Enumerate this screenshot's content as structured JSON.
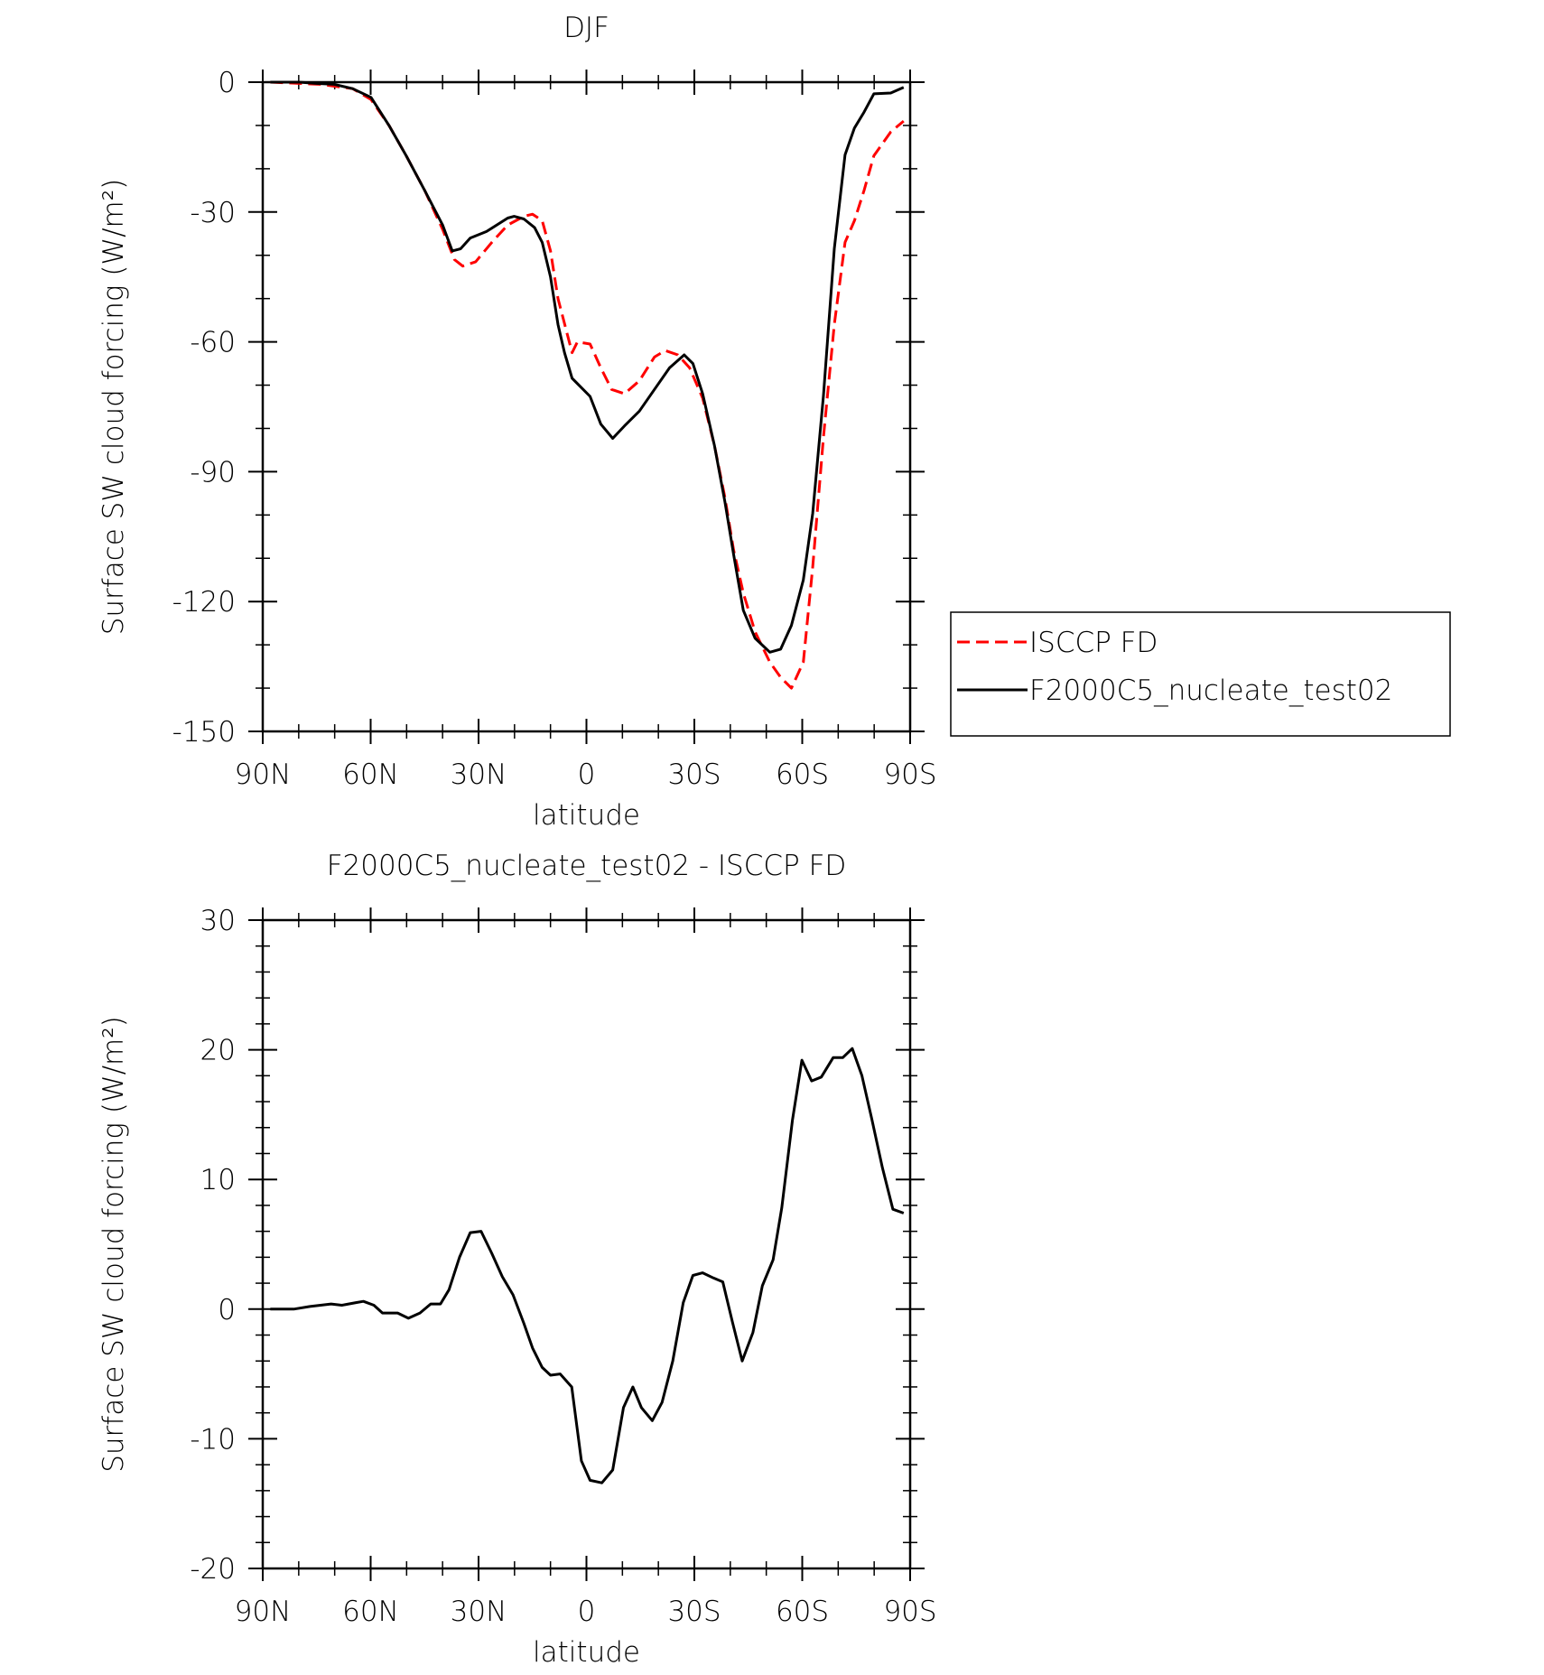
{
  "chart_data": [
    {
      "type": "line",
      "title": "DJF",
      "xlabel": "latitude",
      "ylabel": "Surface SW cloud forcing (W/m²)",
      "xlim": [
        90,
        -90
      ],
      "xticks": [
        {
          "value": 90,
          "label": "90N"
        },
        {
          "value": 60,
          "label": "60N"
        },
        {
          "value": 30,
          "label": "30N"
        },
        0,
        {
          "value": -30,
          "label": "30S"
        },
        {
          "value": -60,
          "label": "60S"
        },
        {
          "value": -90,
          "label": "90S"
        }
      ],
      "xminorticks": [
        80,
        70,
        50,
        40,
        20,
        10,
        -10,
        -20,
        -40,
        -50,
        -70,
        -80
      ],
      "ylim": [
        -150,
        0
      ],
      "yticks": [
        -150,
        -120,
        -90,
        -60,
        -30,
        0
      ],
      "yminorticks": [
        -140,
        -130,
        -110,
        -100,
        -80,
        -70,
        -50,
        -40,
        -20,
        -10
      ],
      "legend": "right",
      "series": [
        {
          "name": "ISCCP FD",
          "color": "#ff0000",
          "dash": true,
          "x": [
            87.9,
            74,
            65.0,
            59.9,
            54.9,
            50.1,
            45.0,
            40.0,
            36.7,
            34.4,
            30.8,
            26.3,
            21.9,
            17.4,
            15.0,
            12.3,
            10.0,
            7.9,
            4.0,
            2.5,
            -1.0,
            -4.0,
            -7.0,
            -10.6,
            -14.7,
            -18.9,
            -21.9,
            -25.4,
            -28.7,
            -32.3,
            -35.6,
            -38.5,
            -40.9,
            -43.6,
            -46.9,
            -51.0,
            -54.0,
            -57.0,
            -60.3,
            -62.9,
            -65.9,
            -68.9,
            -71.9,
            -74.5,
            -77.2,
            -79.9,
            -84.6,
            -88.2
          ],
          "values": [
            0,
            -0.5,
            -1.5,
            -4,
            -10,
            -17,
            -25,
            -34,
            -41,
            -42.5,
            -41.5,
            -37,
            -33,
            -31,
            -30.5,
            -32,
            -39,
            -50,
            -62.5,
            -60,
            -60.5,
            -66,
            -71,
            -72,
            -69,
            -63.5,
            -62,
            -63,
            -66,
            -73,
            -84,
            -96,
            -108,
            -118,
            -127,
            -134,
            -137.5,
            -140,
            -134,
            -112,
            -82,
            -56,
            -37,
            -32,
            -25,
            -17,
            -11.5,
            -9
          ]
        },
        {
          "name": "F2000C5_nucleate_test02",
          "color": "#000000",
          "dash": false,
          "x": [
            87.9,
            79.9,
            75.1,
            70.1,
            65.0,
            59.9,
            54.9,
            50.1,
            45.0,
            40.0,
            37.3,
            35.0,
            32.3,
            27.8,
            21.9,
            20.1,
            17.4,
            14.4,
            12.3,
            10.0,
            7.9,
            6.1,
            4.0,
            -1.0,
            -4.0,
            -7.3,
            -10.6,
            -14.7,
            -18.9,
            -23.1,
            -27.2,
            -29.6,
            -32.3,
            -35.6,
            -38.5,
            -40.9,
            -43.6,
            -46.9,
            -51.0,
            -54.0,
            -57.0,
            -60.3,
            -62.9,
            -65.9,
            -68.9,
            -71.9,
            -74.5,
            -77.2,
            -79.9,
            -84.6,
            -88.2
          ],
          "values": [
            0,
            0,
            -0.3,
            -0.5,
            -1.5,
            -3.5,
            -10,
            -17,
            -25,
            -33,
            -39,
            -38.5,
            -36,
            -34.5,
            -31.4,
            -31,
            -31.6,
            -33.6,
            -37,
            -45,
            -56,
            -62.5,
            -68.4,
            -72.6,
            -79,
            -82.3,
            -79.4,
            -76,
            -71,
            -66,
            -63,
            -65,
            -72,
            -84,
            -97,
            -109,
            -122,
            -128.5,
            -131.7,
            -131,
            -125.5,
            -115,
            -99.6,
            -72.4,
            -38.5,
            -16.8,
            -10.6,
            -6.9,
            -2.7,
            -2.5,
            -1.2
          ]
        }
      ]
    },
    {
      "type": "line",
      "title": "F2000C5_nucleate_test02 - ISCCP FD",
      "xlabel": "latitude",
      "ylabel": "Surface SW cloud forcing (W/m²)",
      "xlim": [
        90,
        -90
      ],
      "xticks": [
        {
          "value": 90,
          "label": "90N"
        },
        {
          "value": 60,
          "label": "60N"
        },
        {
          "value": 30,
          "label": "30N"
        },
        0,
        {
          "value": -30,
          "label": "30S"
        },
        {
          "value": -60,
          "label": "60S"
        },
        {
          "value": -90,
          "label": "90S"
        }
      ],
      "xminorticks": [
        80,
        70,
        50,
        40,
        20,
        10,
        -10,
        -20,
        -40,
        -50,
        -70,
        -80
      ],
      "ylim": [
        -20,
        30
      ],
      "yticks": [
        -20,
        -10,
        0,
        10,
        20,
        30
      ],
      "yminorticks": [
        -18,
        -16,
        -14,
        -12,
        -8,
        -6,
        -4,
        -2,
        2,
        4,
        6,
        8,
        12,
        14,
        16,
        18,
        22,
        24,
        26,
        28
      ],
      "series": [
        {
          "color": "#000000",
          "dash": false,
          "x": [
            87.9,
            81.4,
            76.9,
            71.0,
            68.0,
            64.1,
            62.0,
            59.1,
            56.7,
            52.5,
            49.5,
            46.3,
            43.3,
            40.6,
            38.2,
            35.3,
            32.3,
            29.3,
            26.3,
            23.4,
            20.4,
            17.4,
            15.0,
            12.3,
            10.0,
            7.3,
            4.1,
            1.4,
            -1.0,
            -4.3,
            -7.3,
            -10.3,
            -12.9,
            -15.3,
            -18.3,
            -21.0,
            -24.0,
            -26.9,
            -29.6,
            -32.3,
            -35.3,
            -37.9,
            -40.6,
            -43.3,
            -46.3,
            -48.9,
            -51.9,
            -54.3,
            -57.3,
            -59.9,
            -62.6,
            -65.3,
            -68.6,
            -71.3,
            -73.9,
            -76.6,
            -79.3,
            -82.3,
            -85.2,
            -88.2
          ],
          "values": [
            0,
            0,
            0.2,
            0.4,
            0.3,
            0.5,
            0.6,
            0.3,
            -0.3,
            -0.3,
            -0.7,
            -0.3,
            0.4,
            0.4,
            1.5,
            4,
            5.9,
            6,
            4.3,
            2.5,
            1.1,
            -1.1,
            -3,
            -4.5,
            -5.1,
            -5,
            -6,
            -11.7,
            -13.2,
            -13.4,
            -12.4,
            -7.6,
            -6,
            -7.6,
            -8.6,
            -7.2,
            -4,
            0.5,
            2.6,
            2.8,
            2.4,
            2.1,
            -1,
            -4,
            -1.8,
            1.8,
            3.8,
            7.8,
            14.6,
            19.2,
            17.6,
            17.9,
            19.4,
            19.4,
            20.1,
            18,
            14.7,
            10.9,
            7.7,
            7.4
          ]
        }
      ]
    }
  ]
}
